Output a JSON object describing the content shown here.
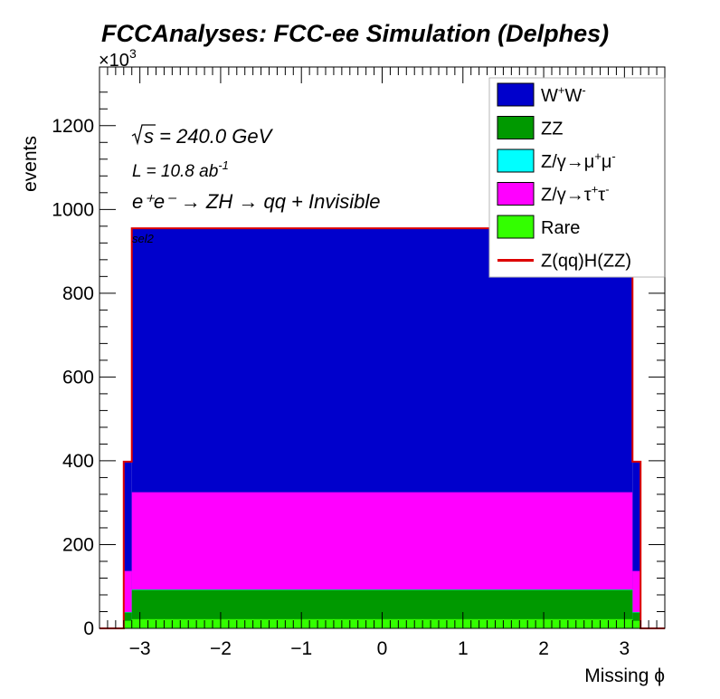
{
  "chart_data": {
    "type": "histogram-stacked",
    "title": "FCCAnalyses: FCC-ee Simulation (Delphes)",
    "xlabel": "Missing ϕ",
    "ylabel": "events",
    "y_multiplier": "×10",
    "y_multiplier_exp": "3",
    "xlim": [
      -3.5,
      3.5
    ],
    "ylim": [
      0,
      1340
    ],
    "x_ticks": [
      -3,
      -2,
      -1,
      0,
      1,
      2,
      3
    ],
    "x_tick_labels": [
      "−3",
      "−2",
      "−1",
      "0",
      "1",
      "2",
      "3"
    ],
    "y_ticks": [
      0,
      200,
      400,
      600,
      800,
      1000,
      1200
    ],
    "y_tick_labels": [
      "0",
      "200",
      "400",
      "600",
      "800",
      "1000",
      "1200"
    ],
    "annotations": {
      "sqrt_s": "s = 240.0 GeV",
      "lumi_prefix": "L = 10.8 ab",
      "lumi_exp": "-1",
      "process": "e⁺e⁻ → ZH → qq + Invisible",
      "selection": "sel2"
    },
    "bins": {
      "edges_center": [
        -3.2,
        -3.1,
        3.1,
        3.2
      ],
      "inner_range": [
        -3.1,
        3.1
      ],
      "n_inner_bins": 62
    },
    "series": [
      {
        "name": "Rare",
        "color": "#33ff00",
        "inner": 22,
        "edge": 18
      },
      {
        "name": "ZZ",
        "color": "#009900",
        "inner": 92,
        "edge": 38
      },
      {
        "name": "Z/γ→μ⁺μ⁻",
        "color": "#00ffff",
        "inner": 93,
        "edge": 39
      },
      {
        "name": "Z/γ→τ⁺τ⁻",
        "color": "#ff00ff",
        "inner": 325,
        "edge": 137
      },
      {
        "name": "W⁺W⁻",
        "color": "#0000cc",
        "inner": 955,
        "edge": 398
      },
      {
        "name": "Z(qq)H(ZZ)",
        "color": "#dd0000",
        "inner": 955,
        "edge": 398,
        "style": "line"
      }
    ],
    "legend_order": [
      {
        "label_main": "W",
        "sup1": "+",
        "mid": "W",
        "sup2": "-",
        "color": "#0000cc",
        "kind": "box"
      },
      {
        "label_main": "ZZ",
        "color": "#009900",
        "kind": "box"
      },
      {
        "label_main": "Z/γ→μ",
        "sup1": "+",
        "mid": "μ",
        "sup2": "-",
        "color": "#00ffff",
        "kind": "box"
      },
      {
        "label_main": "Z/γ→τ",
        "sup1": "+",
        "mid": "τ",
        "sup2": "-",
        "color": "#ff00ff",
        "kind": "box"
      },
      {
        "label_main": "Rare",
        "color": "#33ff00",
        "kind": "box"
      },
      {
        "label_main": "Z(qq)H(ZZ)",
        "color": "#dd0000",
        "kind": "line"
      }
    ],
    "legend_position": "top-right",
    "grid": false
  }
}
